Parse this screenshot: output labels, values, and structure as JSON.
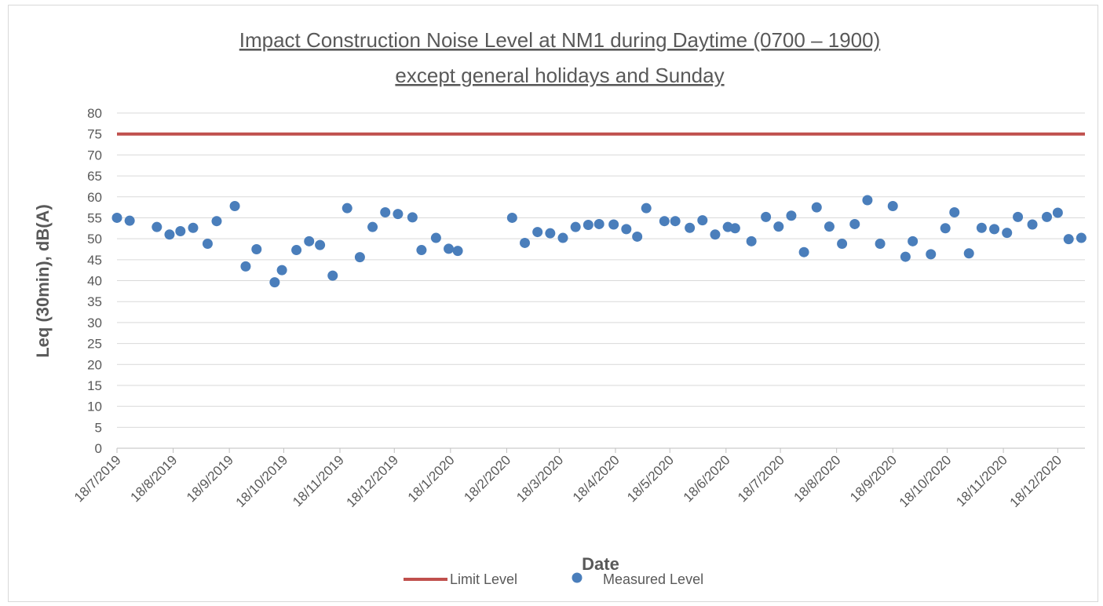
{
  "chart_data": {
    "type": "scatter",
    "title": "Impact Construction Noise Level at NM1 during Daytime (0700 – 1900)",
    "subtitle": "except general holidays and Sunday",
    "x_label": "Date",
    "y_label": "Leq (30min), dB(A)",
    "xlim": [
      "18/7/2019",
      "2/1/2021"
    ],
    "xticks": [
      "18/7/2019",
      "18/8/2019",
      "18/9/2019",
      "18/10/2019",
      "18/11/2019",
      "18/12/2019",
      "18/1/2020",
      "18/2/2020",
      "18/3/2020",
      "18/4/2020",
      "18/5/2020",
      "18/6/2020",
      "18/7/2020",
      "18/8/2020",
      "18/9/2020",
      "18/10/2020",
      "18/11/2020",
      "18/12/2020"
    ],
    "ylim": [
      0,
      80
    ],
    "yticks": [
      0,
      5,
      10,
      15,
      20,
      25,
      30,
      35,
      40,
      45,
      50,
      55,
      60,
      65,
      70,
      75,
      80
    ],
    "grid": true,
    "legend": "bottom",
    "series": [
      {
        "name": "Limit Level",
        "type": "line",
        "color": "#c0504d",
        "x": [
          "18/7/2019",
          "2/1/2021"
        ],
        "values": [
          75,
          75
        ]
      },
      {
        "name": "Measured Level",
        "type": "scatter",
        "color": "#4a7ebb",
        "x": [
          "18/7/2019",
          "25/7/2019",
          "9/8/2019",
          "16/8/2019",
          "22/8/2019",
          "29/8/2019",
          "6/9/2019",
          "11/9/2019",
          "21/9/2019",
          "27/9/2019",
          "3/10/2019",
          "13/10/2019",
          "17/10/2019",
          "25/10/2019",
          "1/11/2019",
          "7/11/2019",
          "14/11/2019",
          "22/11/2019",
          "29/11/2019",
          "6/12/2019",
          "13/12/2019",
          "20/12/2019",
          "28/12/2019",
          "2/1/2020",
          "10/1/2020",
          "17/1/2020",
          "22/1/2020",
          "21/2/2020",
          "28/2/2020",
          "6/3/2020",
          "13/3/2020",
          "20/3/2020",
          "27/3/2020",
          "3/4/2020",
          "9/4/2020",
          "17/4/2020",
          "24/4/2020",
          "30/4/2020",
          "5/5/2020",
          "15/5/2020",
          "21/5/2020",
          "29/5/2020",
          "5/6/2020",
          "12/6/2020",
          "19/6/2020",
          "23/6/2020",
          "2/7/2020",
          "10/7/2020",
          "17/7/2020",
          "24/7/2020",
          "31/7/2020",
          "7/8/2020",
          "14/8/2020",
          "21/8/2020",
          "28/8/2020",
          "4/9/2020",
          "11/9/2020",
          "18/9/2020",
          "25/9/2020",
          "29/9/2020",
          "9/10/2020",
          "17/10/2020",
          "22/10/2020",
          "30/10/2020",
          "6/11/2020",
          "13/11/2020",
          "20/11/2020",
          "26/11/2020",
          "4/12/2020",
          "12/12/2020",
          "18/12/2020",
          "24/12/2020",
          "31/12/2020"
        ],
        "values": [
          55,
          54.3,
          52.8,
          51,
          51.8,
          52.6,
          48.8,
          54.2,
          57.8,
          43.4,
          47.5,
          39.6,
          42.5,
          47.3,
          49.4,
          48.5,
          41.2,
          57.3,
          45.6,
          52.8,
          56.3,
          55.9,
          55.1,
          47.3,
          50.2,
          47.6,
          47.1,
          55,
          49,
          51.6,
          51.3,
          50.2,
          52.8,
          53.3,
          53.5,
          53.4,
          52.3,
          50.5,
          57.3,
          54.2,
          54.2,
          52.6,
          54.4,
          51,
          52.8,
          52.5,
          49.4,
          55.2,
          52.9,
          55.5,
          46.8,
          57.5,
          52.9,
          48.8,
          53.5,
          59.2,
          48.8,
          57.8,
          45.7,
          49.4,
          46.3,
          52.5,
          56.3,
          46.5,
          52.6,
          52.3,
          51.4,
          55.2,
          53.4,
          55.2,
          56.2,
          49.9,
          50.2
        ]
      }
    ]
  }
}
